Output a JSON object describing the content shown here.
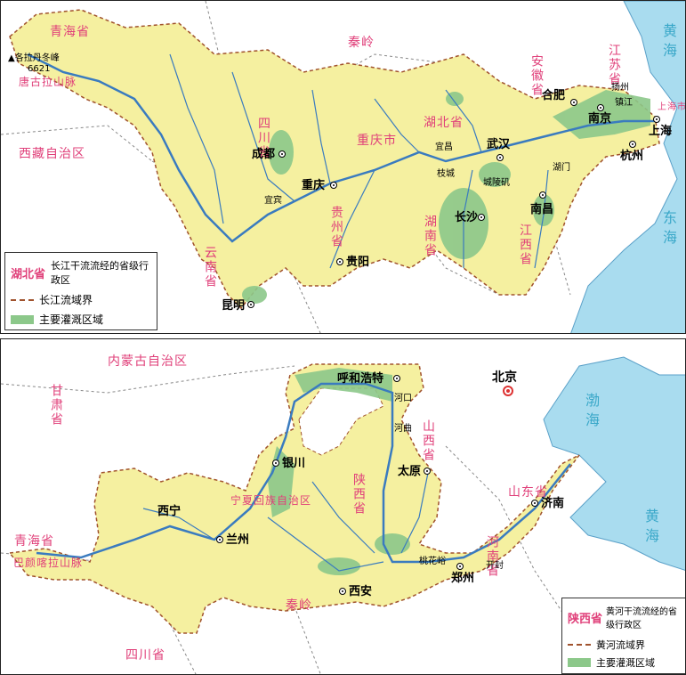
{
  "colors": {
    "basin": "#f5f0a0",
    "basin_stroke": "#a0522d",
    "irrigation": "#8cc88a",
    "river": "#3a7bbf",
    "sea": "#a9dcef",
    "province_label": "#e0407a",
    "sea_label": "#3aa8c9"
  },
  "top": {
    "legend": {
      "province_example": "湖北省",
      "province_desc": "长江干流流经的省级行政区",
      "basin_border": "长江流域界",
      "irrigation": "主要灌溉区域"
    },
    "provinces": {
      "qinghai": "青海省",
      "tibet": "西藏自治区",
      "sichuan": "四川省",
      "chongqing": "重庆市",
      "guizhou": "贵州省",
      "yunnan": "云南省",
      "hubei": "湖北省",
      "hunan": "湖南省",
      "jiangxi": "江西省",
      "anhui": "安徽省",
      "jiangsu": "江苏省",
      "shanghai": "上海市",
      "qinling": "秦岭"
    },
    "seas": {
      "yellow_sea": "黄海",
      "east_sea": "东海"
    },
    "cities": {
      "chengdu": "成都",
      "chongqing": "重庆",
      "guiyang": "贵阳",
      "kunming": "昆明",
      "wuhan": "武汉",
      "changsha": "长沙",
      "nanchang": "南昌",
      "hefei": "合肥",
      "nanjing": "南京",
      "shanghai": "上海",
      "hangzhou": "杭州",
      "yichang": "宜昌",
      "yibin": "宜宾",
      "zhicheng": "枝城",
      "chenglingji": "城陵矶",
      "hukou": "湖门",
      "yangzhou": "扬州",
      "zhenjiang": "镇江"
    },
    "peak": {
      "name": "各拉丹冬峰",
      "elev": "6621"
    },
    "mountains": {
      "tanggula": "唐古拉山脉"
    }
  },
  "bottom": {
    "legend": {
      "province_example": "陕西省",
      "province_desc": "黄河干流流经的省级行政区",
      "basin_border": "黄河流域界",
      "irrigation": "主要灌溉区域"
    },
    "provinces": {
      "inner_mongolia": "内蒙古自治区",
      "gansu": "甘肃省",
      "ningxia": "宁夏回族自治区",
      "shanxi": "山西省",
      "shaanxi": "陕西省",
      "henan": "河南省",
      "shandong": "山东省",
      "qinghai": "青海省",
      "sichuan": "四川省",
      "qinling": "秦岭"
    },
    "seas": {
      "bohai": "渤海",
      "yellow_sea": "黄海"
    },
    "cities": {
      "beijing": "北京",
      "hohhot": "呼和浩特",
      "yinchuan": "银川",
      "taiyuan": "太原",
      "xining": "西宁",
      "lanzhou": "兰州",
      "xian": "西安",
      "zhengzhou": "郑州",
      "jinan": "济南",
      "kaifeng": "开封",
      "hekou": "河口",
      "hequ": "河曲",
      "taohuayu": "桃花峪"
    },
    "mountains": {
      "bayan_har": "巴颜喀拉山脉"
    }
  }
}
